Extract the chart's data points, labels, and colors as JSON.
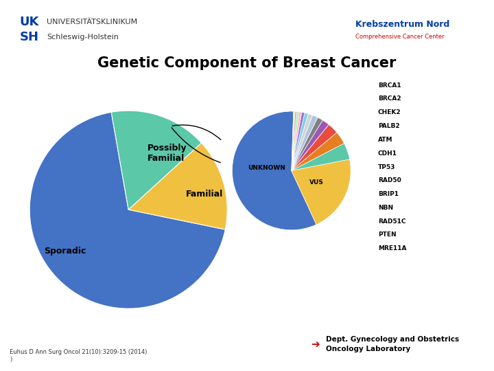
{
  "title": "Genetic Component of Breast Cancer",
  "title_fontsize": 15,
  "background_color": "#ffffff",
  "pie1_labels": [
    "Sporadic",
    "Familial",
    "Possibly\nFamilial"
  ],
  "pie1_values": [
    69,
    15,
    16
  ],
  "pie1_colors": [
    "#4472C4",
    "#F0C040",
    "#5BC8A8"
  ],
  "pie1_startangle": 100,
  "pie2_labels": [
    "UNKNOWN",
    "VUS",
    "BRCA1",
    "BRCA2",
    "CHEK2",
    "PALB2",
    "ATM",
    "CDH1",
    "TP53",
    "RAD50",
    "BRIP1",
    "NBN",
    "RAD51C",
    "PTEN",
    "MRE11A"
  ],
  "pie2_values": [
    57,
    21,
    4.5,
    3.5,
    3.0,
    2.0,
    1.5,
    1.5,
    1.2,
    1.0,
    0.8,
    0.7,
    0.6,
    0.5,
    0.4
  ],
  "pie2_colors": [
    "#4472C4",
    "#F0C040",
    "#5BC8A8",
    "#E67E22",
    "#E74C3C",
    "#9B59B6",
    "#808080",
    "#B0C4DE",
    "#D3D3D3",
    "#87CEEB",
    "#9370DB",
    "#FFB6C1",
    "#98FB98",
    "#DDA0DD",
    "#F0E68C"
  ],
  "pie2_startangle": 88,
  "header_text1": "UNIVERSITÄTSKLINIKUM",
  "header_text2": "Schleswig-Holstein",
  "footer_ref1": "Euhus D Ann Surg Oncol 21(10):3209-15 (2014)",
  "footer_ref2": ")",
  "footer_dept": "Dept. Gynecology and Obstetrics\nOncology Laboratory",
  "arrow_color": "#CC0000",
  "gene_labels": [
    "BRCA1",
    "BRCA2",
    "CHEK2",
    "PALB2",
    "ATM",
    "CDH1",
    "TP53",
    "RAD50",
    "BRIP1",
    "NBN",
    "RAD51C",
    "PTEN",
    "MRE11A"
  ],
  "gene_colors": [
    "#5BC8A8",
    "#E67E22",
    "#E74C3C",
    "#9B59B6",
    "#808080",
    "#B0C4DE",
    "#D3D3D3",
    "#87CEEB",
    "#9370DB",
    "#FFB6C1",
    "#98FB98",
    "#DDA0DD",
    "#F0E68C"
  ]
}
